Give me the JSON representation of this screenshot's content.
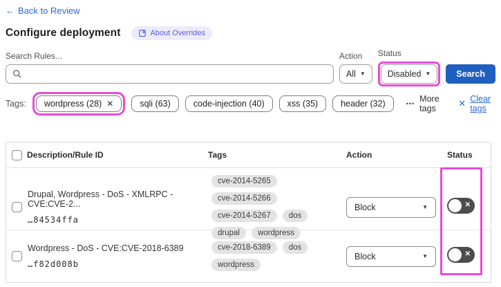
{
  "page": {
    "back_icon": "←",
    "back_label": "Back to Review",
    "title": "Configure deployment",
    "about_badge": "About Overrides"
  },
  "filters": {
    "search_label": "Search Rules...",
    "search_value": "",
    "action_label": "Action",
    "action_value": "All",
    "status_label": "Status",
    "status_value": "Disabled",
    "search_button": "Search"
  },
  "icons": {
    "dropdown_arrow": "▼",
    "more_dots": "•••",
    "clear_x": "✕",
    "remove_x": "✕",
    "toggle_off_x": "✕"
  },
  "tags_bar": {
    "label": "Tags:",
    "selected_tag": "wordpress (28)",
    "tags": [
      "sqli (63)",
      "code-injection (40)",
      "xss (35)",
      "header (32)"
    ],
    "more_tags": "More tags",
    "clear_tags": "Clear tags"
  },
  "table": {
    "columns": [
      "Description/Rule ID",
      "Tags",
      "Action",
      "Status"
    ],
    "rows": [
      {
        "description": "Drupal, Wordpress - DoS - XMLRPC - CVE:CVE-2...",
        "rule_id": "…84534ffa",
        "tags": [
          "cve-2014-5265",
          "cve-2014-5266",
          "cve-2014-5267",
          "dos",
          "drupal",
          "wordpress"
        ],
        "action": "Block",
        "checked": false,
        "status_enabled": false
      },
      {
        "description": "Wordpress - DoS - CVE:CVE-2018-6389",
        "rule_id": "…f82d008b",
        "tags": [
          "cve-2018-6389",
          "dos",
          "wordpress"
        ],
        "action": "Block",
        "checked": false,
        "status_enabled": false
      }
    ]
  },
  "colors": {
    "highlight_annotation": "#E84AD5",
    "primary_button": "#1F5FBF",
    "link": "#2B68D9",
    "badge_bg": "#ECEBFB",
    "badge_text": "#5B5BD6",
    "toggle_off": "#4C4C4C",
    "tag_pill_bg": "#E3E3E3"
  }
}
